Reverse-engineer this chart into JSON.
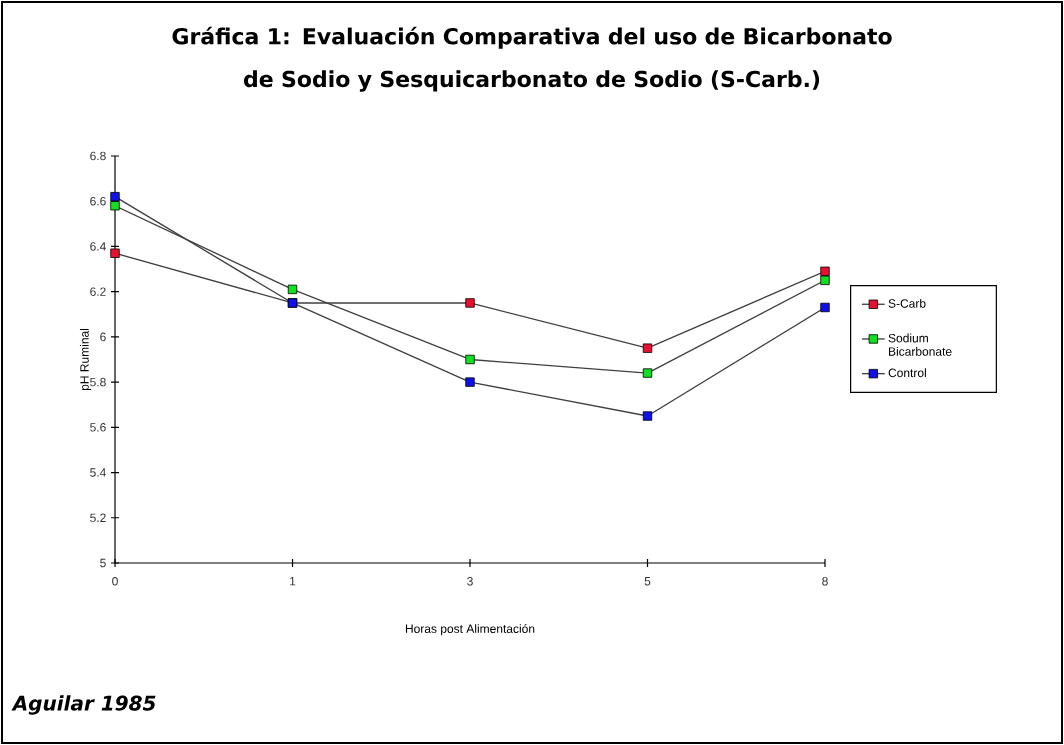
{
  "chart_data": {
    "type": "line",
    "title": "Gráfica 1: Evaluación Comparativa del uso de Bicarbonato de Sodio y Sesquicarbonato de Sodio (S-Carb.)",
    "xlabel": "Horas post Alimentación",
    "ylabel": "pH Ruminal",
    "annotations": [
      "Aguilar 1985"
    ],
    "categories": [
      "0",
      "1",
      "3",
      "5",
      "8"
    ],
    "series": [
      {
        "name": "S-Carb",
        "color": "#e8102e",
        "values": [
          6.37,
          6.15,
          6.15,
          5.95,
          6.29
        ]
      },
      {
        "name": "Sodium Bicarbonate",
        "color": "#10e020",
        "values": [
          6.58,
          6.21,
          5.9,
          5.84,
          6.25
        ]
      },
      {
        "name": "Control",
        "color": "#1010e8",
        "values": [
          6.62,
          6.15,
          5.8,
          5.65,
          6.13
        ]
      }
    ],
    "ylim": [
      5,
      6.8
    ],
    "yticks": [
      5,
      5.2,
      5.4,
      5.6,
      5.8,
      6,
      6.2,
      6.4,
      6.6,
      6.8
    ],
    "grid": false,
    "legend": "right",
    "marker": "square",
    "line_style": "solid"
  }
}
